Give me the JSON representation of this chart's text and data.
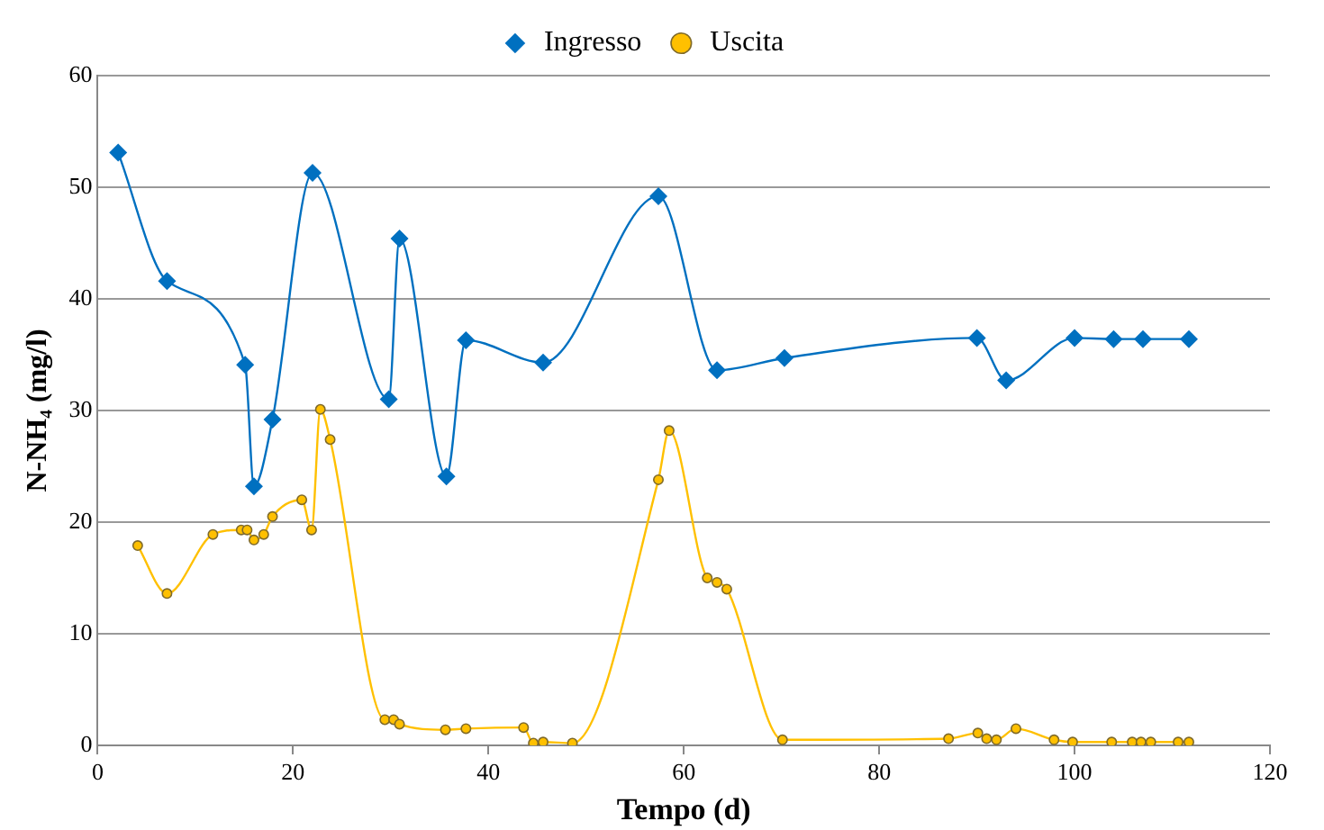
{
  "chart_data": {
    "type": "line",
    "xlabel": "Tempo (d)",
    "ylabel": "N-NH₄ (mg/l)",
    "xlim": [
      0,
      120
    ],
    "xticks": [
      0,
      20,
      40,
      60,
      80,
      100,
      120
    ],
    "ylim": [
      0,
      60
    ],
    "yticks": [
      0,
      10,
      20,
      30,
      40,
      50,
      60
    ],
    "grid": "y",
    "legend": "top",
    "series": [
      {
        "name": "Ingresso",
        "color": "#0070c0",
        "marker": "diamond",
        "x": [
          2.1,
          7.1,
          15.1,
          16,
          17.9,
          22,
          29.8,
          30.9,
          35.7,
          37.7,
          45.6,
          57.4,
          63.4,
          70.3,
          90,
          93,
          100,
          104,
          107,
          111.7
        ],
        "values": [
          53.1,
          41.6,
          34.1,
          23.2,
          29.2,
          51.3,
          31.0,
          45.4,
          24.1,
          36.3,
          34.3,
          49.2,
          33.6,
          34.7,
          36.5,
          32.7,
          36.5,
          36.4,
          36.4,
          36.4
        ]
      },
      {
        "name": "Uscita",
        "color": "#ffc000",
        "marker": "circle",
        "x": [
          4.1,
          7.1,
          11.8,
          14.7,
          15.3,
          16,
          17,
          17.9,
          20.9,
          21.9,
          22.8,
          23.8,
          29.4,
          30.3,
          30.9,
          35.6,
          37.7,
          43.6,
          44.6,
          45.6,
          48.6,
          57.4,
          58.5,
          62.4,
          63.4,
          64.4,
          70.1,
          87.1,
          90.1,
          91,
          92,
          94,
          97.9,
          99.8,
          103.8,
          105.9,
          106.8,
          107.8,
          110.6,
          111.7
        ],
        "values": [
          17.9,
          13.6,
          18.9,
          19.3,
          19.3,
          18.4,
          18.9,
          20.5,
          22,
          19.3,
          30.1,
          27.4,
          2.3,
          2.3,
          1.9,
          1.4,
          1.5,
          1.6,
          0.2,
          0.3,
          0.2,
          23.8,
          28.2,
          15,
          14.6,
          14,
          0.5,
          0.6,
          1.1,
          0.6,
          0.5,
          1.5,
          0.5,
          0.3,
          0.3,
          0.3,
          0.3,
          0.3,
          0.3,
          0.3
        ]
      }
    ]
  }
}
